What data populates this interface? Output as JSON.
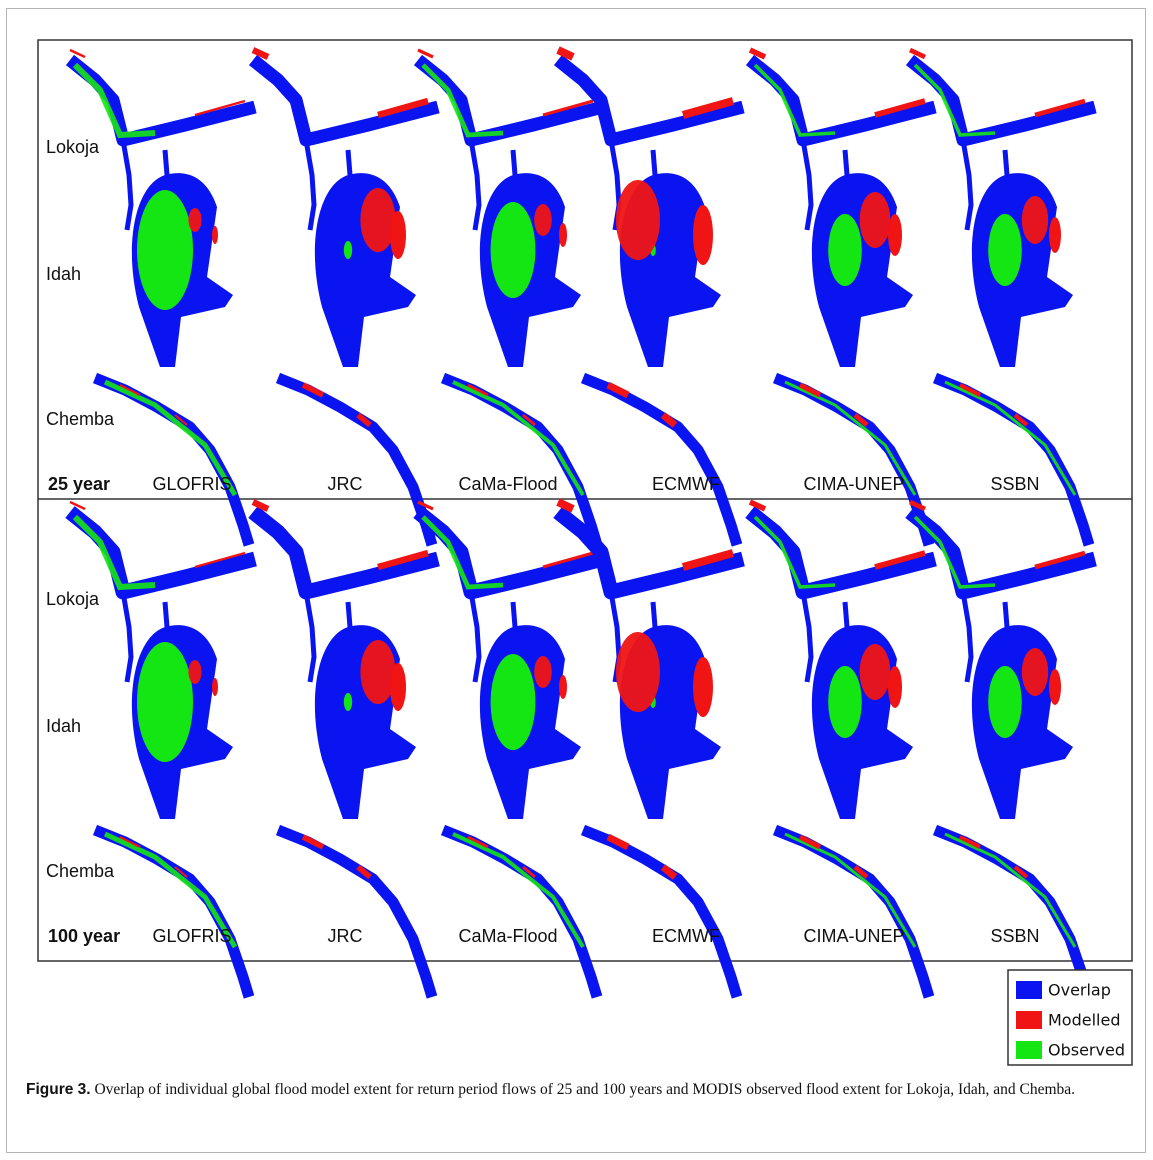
{
  "panels": [
    {
      "period_label": "25 year",
      "site_labels": [
        "Lokoja",
        "Idah",
        "Chemba"
      ],
      "models": [
        "GLOFRIS",
        "JRC",
        "CaMa-Flood",
        "ECMWF",
        "CIMA-UNEP",
        "SSBN"
      ]
    },
    {
      "period_label": "100 year",
      "site_labels": [
        "Lokoja",
        "Idah",
        "Chemba"
      ],
      "models": [
        "GLOFRIS",
        "JRC",
        "CaMa-Flood",
        "ECMWF",
        "CIMA-UNEP",
        "SSBN"
      ]
    }
  ],
  "legend": {
    "items": [
      "Overlap",
      "Modelled",
      "Observed"
    ]
  },
  "caption": {
    "label": "Figure 3.",
    "text": "Overlap of individual global flood model extent for return period flows of 25 and 100 years and MODIS observed flood extent for Lokoja, Idah, and Chemba."
  }
}
